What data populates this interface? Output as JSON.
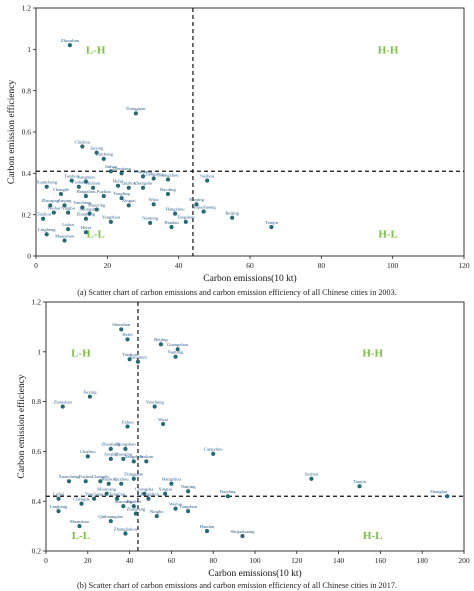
{
  "chart_data": [
    {
      "type": "scatter",
      "caption": "(a) Scatter chart of carbon emissions and carbon emission efficiency of all Chinese cities in 2003.",
      "xlabel": "Carbon emissions(10 kt)",
      "ylabel": "Carbon emission efficiency",
      "xlim": [
        0,
        120
      ],
      "ylim": [
        0,
        1.2
      ],
      "xticks": [
        "0",
        "20",
        "40",
        "60",
        "80",
        "100",
        "120"
      ],
      "yticks": [
        "0",
        "0.2",
        "0.4",
        "0.6",
        "0.8",
        "1",
        "1.2"
      ],
      "thresholds": {
        "x": 44,
        "y": 0.41
      },
      "quadrant_labels": {
        "top_left": "L-H",
        "top_right": "H-H",
        "bottom_left": "L-L",
        "bottom_right": "H-L"
      },
      "point_color": "#1f6e7a",
      "quadrant_color": "#7cc043",
      "points": [
        {
          "label": "Zhoushan",
          "x": 9.5,
          "y": 1.02
        },
        {
          "label": "Dongguan",
          "x": 28,
          "y": 0.69
        },
        {
          "label": "Chizhou",
          "x": 13,
          "y": 0.53
        },
        {
          "label": "Jiaxing",
          "x": 17,
          "y": 0.5
        },
        {
          "label": "Yuncheng",
          "x": 19,
          "y": 0.47
        },
        {
          "label": "Jinhua",
          "x": 21,
          "y": 0.41
        },
        {
          "label": "Zhenjiang",
          "x": 24,
          "y": 0.4
        },
        {
          "label": "Mianyang",
          "x": 30,
          "y": 0.385
        },
        {
          "label": "Changzhou",
          "x": 33,
          "y": 0.375
        },
        {
          "label": "Guangzhou",
          "x": 37,
          "y": 0.37
        },
        {
          "label": "Suzhou",
          "x": 48,
          "y": 0.365
        },
        {
          "label": "Taizhou",
          "x": 10,
          "y": 0.365
        },
        {
          "label": "Jiangmen",
          "x": 14,
          "y": 0.36
        },
        {
          "label": "Xuancheng",
          "x": 3,
          "y": 0.335
        },
        {
          "label": "Foshan",
          "x": 12,
          "y": 0.335
        },
        {
          "label": "Huzhou",
          "x": 16,
          "y": 0.33
        },
        {
          "label": "Hefei",
          "x": 23,
          "y": 0.34
        },
        {
          "label": "Quzhou",
          "x": 26,
          "y": 0.33
        },
        {
          "label": "Changsha",
          "x": 30,
          "y": 0.33
        },
        {
          "label": "Baoding",
          "x": 37,
          "y": 0.3
        },
        {
          "label": "Chengde",
          "x": 7,
          "y": 0.3
        },
        {
          "label": "Hangzhou",
          "x": 14,
          "y": 0.29
        },
        {
          "label": "Fuzhou",
          "x": 19,
          "y": 0.29
        },
        {
          "label": "Tongling",
          "x": 24,
          "y": 0.28
        },
        {
          "label": "Nanjing",
          "x": 45,
          "y": 0.25
        },
        {
          "label": "Wuxi",
          "x": 33,
          "y": 0.25
        },
        {
          "label": "Xingtai",
          "x": 26,
          "y": 0.245
        },
        {
          "label": "Zhaoqing",
          "x": 4,
          "y": 0.245
        },
        {
          "label": "Anqing",
          "x": 8,
          "y": 0.245
        },
        {
          "label": "Yancheng",
          "x": 13,
          "y": 0.235
        },
        {
          "label": "Shaoxing",
          "x": 17,
          "y": 0.225
        },
        {
          "label": "Weihai",
          "x": 5,
          "y": 0.21
        },
        {
          "label": "Ningbo",
          "x": 9,
          "y": 0.21
        },
        {
          "label": "Zhongshan",
          "x": 15,
          "y": 0.205
        },
        {
          "label": "Hangzhou",
          "x": 39,
          "y": 0.205
        },
        {
          "label": "Shijiazhuang",
          "x": 47,
          "y": 0.215
        },
        {
          "label": "Beijing",
          "x": 55,
          "y": 0.185
        },
        {
          "label": "Chizhou",
          "x": 2,
          "y": 0.18
        },
        {
          "label": "Zhanjiang",
          "x": 14,
          "y": 0.18
        },
        {
          "label": "Yangzhou",
          "x": 21,
          "y": 0.165
        },
        {
          "label": "Nantong",
          "x": 32,
          "y": 0.16
        },
        {
          "label": "Tangshan",
          "x": 42,
          "y": 0.165
        },
        {
          "label": "Tianjin",
          "x": 66,
          "y": 0.14
        },
        {
          "label": "Handan",
          "x": 38,
          "y": 0.14
        },
        {
          "label": "Lishui",
          "x": 9,
          "y": 0.13
        },
        {
          "label": "Hefei",
          "x": 14,
          "y": 0.115
        },
        {
          "label": "Lingbeng",
          "x": 3,
          "y": 0.105
        },
        {
          "label": "Maanshan",
          "x": 8,
          "y": 0.075
        }
      ]
    },
    {
      "type": "scatter",
      "caption": "(b) Scatter chart of carbon emissions and carbon emission efficiency of all Chinese cities in 2017.",
      "xlabel": "Carbon emissions(10 kt)",
      "ylabel": "Carbon emission efficiency",
      "xlim": [
        0,
        200
      ],
      "ylim": [
        0.2,
        1.2
      ],
      "xticks": [
        "0",
        "20",
        "40",
        "60",
        "80",
        "100",
        "120",
        "140",
        "160",
        "180",
        "200"
      ],
      "yticks": [
        "0.2",
        "0.4",
        "0.6",
        "0.8",
        "1",
        "1.2"
      ],
      "thresholds": {
        "x": 44,
        "y": 0.42
      },
      "quadrant_labels": {
        "top_left": "L-H",
        "top_right": "H-H",
        "bottom_left": "L-L",
        "bottom_right": "H-L"
      },
      "point_color": "#1f6e7a",
      "quadrant_color": "#7cc043",
      "points": [
        {
          "label": "Shenzhen",
          "x": 36,
          "y": 1.09
        },
        {
          "label": "Hefei",
          "x": 39,
          "y": 1.05
        },
        {
          "label": "Beijing",
          "x": 55,
          "y": 1.03
        },
        {
          "label": "Guangzhou",
          "x": 63,
          "y": 1.01
        },
        {
          "label": "Nantong",
          "x": 62,
          "y": 0.98
        },
        {
          "label": "Taizhou",
          "x": 40,
          "y": 0.97
        },
        {
          "label": "Jiangmen",
          "x": 44,
          "y": 0.96
        },
        {
          "label": "Jiaxing",
          "x": 21,
          "y": 0.82
        },
        {
          "label": "Zhoushan",
          "x": 8,
          "y": 0.78
        },
        {
          "label": "Yancheng",
          "x": 52,
          "y": 0.78
        },
        {
          "label": "Wuxi",
          "x": 56,
          "y": 0.71
        },
        {
          "label": "Jinhua",
          "x": 39,
          "y": 0.7
        },
        {
          "label": "Cangzhou",
          "x": 80,
          "y": 0.59
        },
        {
          "label": "Suzhou",
          "x": 127,
          "y": 0.49
        },
        {
          "label": "Tianjin",
          "x": 150,
          "y": 0.46
        },
        {
          "label": "Shanghai",
          "x": 192,
          "y": 0.42
        },
        {
          "label": "Zhenjiang",
          "x": 31,
          "y": 0.61
        },
        {
          "label": "Zhongshan",
          "x": 38,
          "y": 0.61
        },
        {
          "label": "Chizhou",
          "x": 20,
          "y": 0.58
        },
        {
          "label": "Anqing",
          "x": 31,
          "y": 0.57
        },
        {
          "label": "Zhaoqing",
          "x": 37,
          "y": 0.57
        },
        {
          "label": "Yangzhou",
          "x": 42,
          "y": 0.56
        },
        {
          "label": "Foshan",
          "x": 48,
          "y": 0.56
        },
        {
          "label": "Xuancheng",
          "x": 11,
          "y": 0.48
        },
        {
          "label": "Fuzhou",
          "x": 19,
          "y": 0.48
        },
        {
          "label": "Changde",
          "x": 26,
          "y": 0.48
        },
        {
          "label": "Huzhou",
          "x": 30,
          "y": 0.47
        },
        {
          "label": "Quzhou",
          "x": 36,
          "y": 0.47
        },
        {
          "label": "Dongguan",
          "x": 42,
          "y": 0.49
        },
        {
          "label": "Hangzhou",
          "x": 60,
          "y": 0.47
        },
        {
          "label": "Nanjing",
          "x": 68,
          "y": 0.44
        },
        {
          "label": "Baoding",
          "x": 87,
          "y": 0.42
        },
        {
          "label": "Changsha",
          "x": 47,
          "y": 0.43
        },
        {
          "label": "Mianyang",
          "x": 29,
          "y": 0.43
        },
        {
          "label": "Xingtai",
          "x": 57,
          "y": 0.43
        },
        {
          "label": "Lishui",
          "x": 6,
          "y": 0.41
        },
        {
          "label": "Yuncheng",
          "x": 23,
          "y": 0.41
        },
        {
          "label": "Tongling",
          "x": 34,
          "y": 0.41
        },
        {
          "label": "Changzhou",
          "x": 49,
          "y": 0.41
        },
        {
          "label": "Chengde",
          "x": 17,
          "y": 0.39
        },
        {
          "label": "Shaoxing",
          "x": 37,
          "y": 0.38
        },
        {
          "label": "Huaibei",
          "x": 42,
          "y": 0.38
        },
        {
          "label": "Weihai",
          "x": 62,
          "y": 0.37
        },
        {
          "label": "Tangshan",
          "x": 68,
          "y": 0.36
        },
        {
          "label": "Lingbeng",
          "x": 6,
          "y": 0.36
        },
        {
          "label": "Zhanjiang",
          "x": 43,
          "y": 0.35
        },
        {
          "label": "Ningbo",
          "x": 53,
          "y": 0.34
        },
        {
          "label": "Qinhuangdao",
          "x": 31,
          "y": 0.32
        },
        {
          "label": "Maanshan",
          "x": 16,
          "y": 0.3
        },
        {
          "label": "Handan",
          "x": 77,
          "y": 0.28
        },
        {
          "label": "Shijiazhuang",
          "x": 94,
          "y": 0.26
        },
        {
          "label": "Zhangjiakou",
          "x": 38,
          "y": 0.27
        }
      ]
    }
  ]
}
